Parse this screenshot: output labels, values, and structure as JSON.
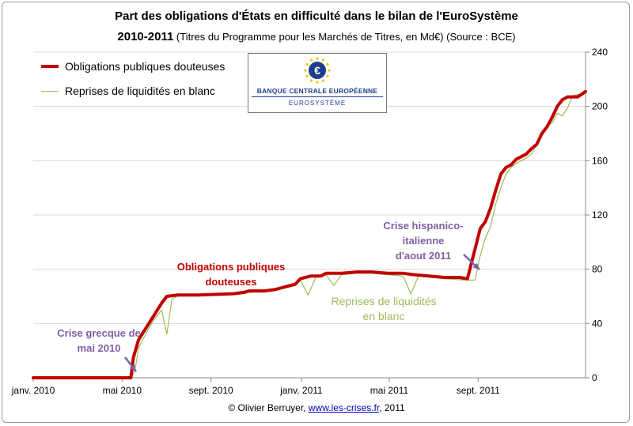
{
  "title": "Part des obligations d'États en difficulté dans le bilan de l'EuroSystème",
  "subtitle_bold": "2010-2011",
  "subtitle_rest": "(Titres du Programme pour les Marchés de Titres, en Md€) (Source : BCE)",
  "legend": [
    {
      "label": "Obligations publiques douteuses",
      "color": "#c00000"
    },
    {
      "label": "Reprises de liquidités en blanc",
      "color": "#9bbb59"
    }
  ],
  "logo": {
    "name": "BANQUE CENTRALE EUROPÉENNE",
    "sub": "EUROSYSTÈME"
  },
  "annotations": {
    "greece": "Crise grecque de mai 2010",
    "greece_l1": "Crise grecque de",
    "greece_l2": "mai 2010",
    "spain_l1": "Crise hispanico-",
    "spain_l2": "italienne",
    "spain_l3": "d'aout 2011",
    "oblig_l1": "Obligations publiques",
    "oblig_l2": "douteuses",
    "repr_l1": "Reprises de liquidités",
    "repr_l2": "en blanc"
  },
  "footer": {
    "prefix": "© Olivier Berruyer,",
    "link": "www.les-crises.fr",
    "suffix": ",  2011"
  },
  "colors": {
    "red": "#c00000",
    "green": "#9bbb59",
    "purple": "#7e5fa3",
    "axis": "#888888",
    "grid": "#d9d9d9"
  },
  "chart_data": {
    "type": "line",
    "ylim": [
      0,
      240
    ],
    "y_ticks": [
      "0",
      "40",
      "80",
      "120",
      "160",
      "200",
      "240"
    ],
    "x_ticks": [
      "janv. 2010",
      "mai 2010",
      "sept. 2010",
      "janv. 2011",
      "mai 2011",
      "sept. 2011"
    ],
    "x_range_weeks": [
      0,
      104
    ],
    "grid": true,
    "legend_position": "top-left",
    "series": [
      {
        "name": "Obligations publiques douteuses",
        "points": [
          [
            0,
            0
          ],
          [
            18,
            0
          ],
          [
            19,
            0
          ],
          [
            19.5,
            15
          ],
          [
            20.5,
            28
          ],
          [
            22,
            37
          ],
          [
            23.5,
            46
          ],
          [
            25,
            55
          ],
          [
            26,
            60
          ],
          [
            28,
            61
          ],
          [
            32,
            61
          ],
          [
            36,
            61.5
          ],
          [
            39,
            62
          ],
          [
            41,
            63
          ],
          [
            42,
            64
          ],
          [
            45,
            64
          ],
          [
            47,
            65
          ],
          [
            49,
            67
          ],
          [
            51,
            69
          ],
          [
            52,
            73
          ],
          [
            54,
            75
          ],
          [
            56,
            75
          ],
          [
            57,
            77
          ],
          [
            60,
            77
          ],
          [
            63,
            78
          ],
          [
            66,
            78
          ],
          [
            69,
            77
          ],
          [
            72,
            77
          ],
          [
            74,
            76
          ],
          [
            77,
            75
          ],
          [
            80,
            74
          ],
          [
            83,
            74
          ],
          [
            84.5,
            73
          ],
          [
            86,
            95
          ],
          [
            87,
            110
          ],
          [
            88,
            115
          ],
          [
            89,
            125
          ],
          [
            90,
            138
          ],
          [
            91,
            150
          ],
          [
            92,
            155
          ],
          [
            93,
            157
          ],
          [
            94,
            161
          ],
          [
            95,
            163
          ],
          [
            96,
            165
          ],
          [
            97,
            169
          ],
          [
            98,
            172
          ],
          [
            99,
            180
          ],
          [
            100,
            185
          ],
          [
            101,
            192
          ],
          [
            102,
            200
          ],
          [
            103,
            205
          ],
          [
            104,
            207
          ],
          [
            106,
            207
          ],
          [
            107.5,
            211
          ]
        ]
      },
      {
        "name": "Reprises de liquidités en blanc",
        "points": [
          [
            0,
            0
          ],
          [
            19,
            0
          ],
          [
            19.5,
            3
          ],
          [
            20,
            10
          ],
          [
            20.5,
            22
          ],
          [
            22,
            33
          ],
          [
            23.5,
            43
          ],
          [
            25,
            50
          ],
          [
            26,
            32
          ],
          [
            27,
            58
          ],
          [
            28,
            60
          ],
          [
            32,
            61
          ],
          [
            36,
            61
          ],
          [
            39,
            61.5
          ],
          [
            41,
            62
          ],
          [
            42,
            63
          ],
          [
            46,
            64
          ],
          [
            49,
            66
          ],
          [
            51,
            68
          ],
          [
            52,
            72
          ],
          [
            53.5,
            61
          ],
          [
            55,
            74
          ],
          [
            57,
            76
          ],
          [
            58.5,
            68
          ],
          [
            60,
            76
          ],
          [
            63,
            77
          ],
          [
            66,
            77
          ],
          [
            69,
            76
          ],
          [
            72,
            75
          ],
          [
            73.5,
            62
          ],
          [
            75,
            75
          ],
          [
            78,
            74
          ],
          [
            80,
            73
          ],
          [
            84,
            72
          ],
          [
            86,
            72
          ],
          [
            87,
            90
          ],
          [
            88,
            103
          ],
          [
            89,
            111
          ],
          [
            90,
            128
          ],
          [
            91,
            140
          ],
          [
            92,
            150
          ],
          [
            93,
            155
          ],
          [
            94,
            158
          ],
          [
            95,
            160
          ],
          [
            96,
            162
          ],
          [
            97,
            165
          ],
          [
            98,
            172
          ],
          [
            99,
            178
          ],
          [
            100,
            186
          ],
          [
            101,
            188
          ],
          [
            102,
            195
          ],
          [
            103,
            193
          ],
          [
            104,
            199
          ],
          [
            105,
            208
          ],
          [
            107.5,
            210
          ]
        ]
      }
    ]
  }
}
